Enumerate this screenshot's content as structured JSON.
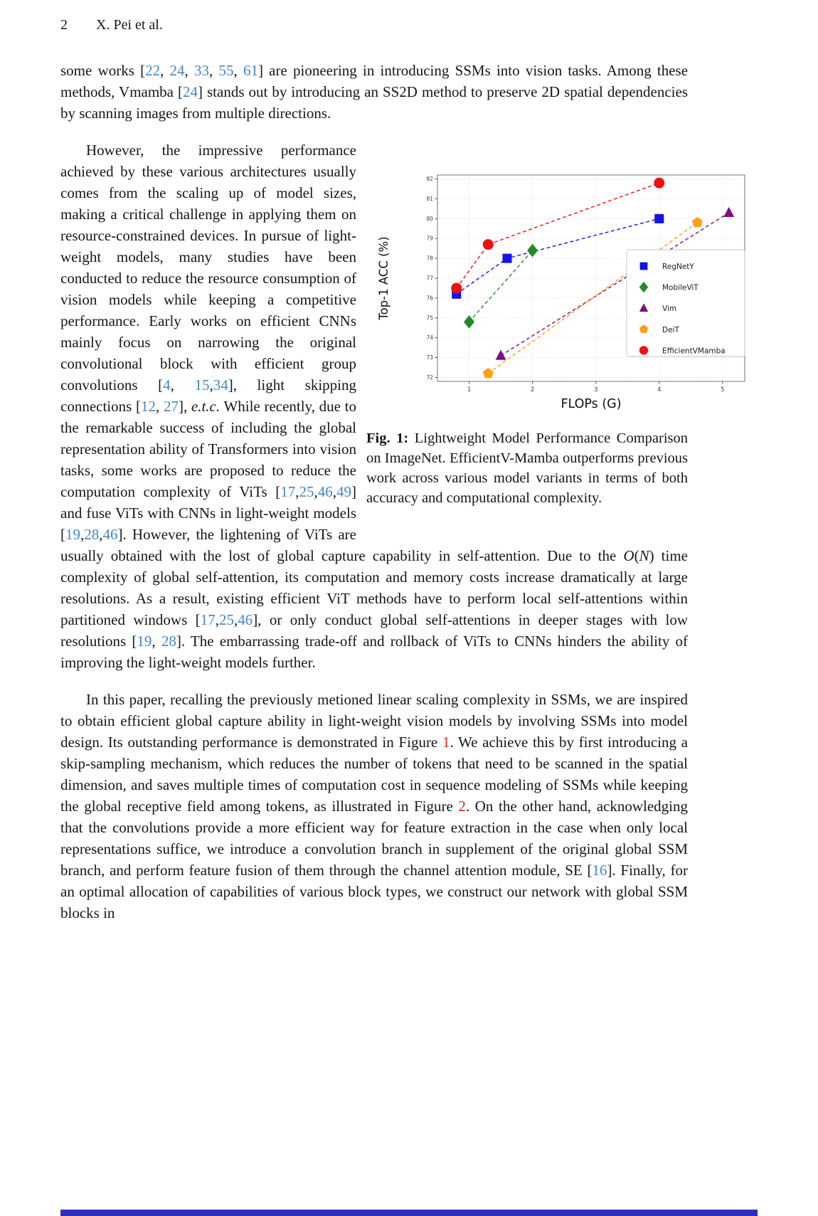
{
  "page": {
    "number": "2",
    "running_head": "X. Pei et al."
  },
  "colors": {
    "citation": "#4486c7",
    "figure_reference": "#d42a20",
    "body_text": "#161616",
    "bottom_bar": "#2e2ec4"
  },
  "figure": {
    "caption_label": "Fig. 1:",
    "caption_text": "Lightweight Model Performance Comparison on ImageNet. EfficientV-Mamba outperforms previous work across various model variants in terms of both accuracy and computational complexity."
  },
  "chart_data": {
    "type": "scatter",
    "title": "",
    "xlabel": "FLOPs (G)",
    "ylabel": "Top-1 ACC (%)",
    "xlim": [
      0.5,
      5.35
    ],
    "ylim": [
      71.8,
      82.2
    ],
    "xticks": [
      1,
      2,
      3,
      4,
      5
    ],
    "yticks": [
      72,
      73,
      74,
      75,
      76,
      77,
      78,
      79,
      80,
      81,
      82
    ],
    "grid": true,
    "legend_position": "center-right",
    "line_style": "dashed",
    "series": [
      {
        "name": "RegNetY",
        "marker": "square",
        "color": "#1414e6",
        "points": [
          [
            0.8,
            76.2
          ],
          [
            1.6,
            78.0
          ],
          [
            4.0,
            80.0
          ]
        ]
      },
      {
        "name": "MobileViT",
        "marker": "diamond",
        "color": "#228b22",
        "points": [
          [
            1.0,
            74.8
          ],
          [
            2.0,
            78.4
          ]
        ]
      },
      {
        "name": "Vim",
        "marker": "triangle",
        "color": "#7b1085",
        "points": [
          [
            1.5,
            73.1
          ],
          [
            5.1,
            80.3
          ]
        ]
      },
      {
        "name": "DeiT",
        "marker": "pentagon",
        "color": "#ffa012",
        "points": [
          [
            1.3,
            72.2
          ],
          [
            4.6,
            79.8
          ]
        ]
      },
      {
        "name": "EfficientVMamba",
        "marker": "circle",
        "color": "#ee1111",
        "points": [
          [
            0.8,
            76.5
          ],
          [
            1.3,
            78.7
          ],
          [
            4.0,
            81.8
          ]
        ]
      }
    ]
  },
  "paragraphs": [
    {
      "id": "intro",
      "indent": false,
      "spaced": false,
      "segments": [
        {
          "t": "some works ["
        },
        {
          "t": "22",
          "c": "cite"
        },
        {
          "t": ", "
        },
        {
          "t": "24",
          "c": "cite"
        },
        {
          "t": ", "
        },
        {
          "t": "33",
          "c": "cite"
        },
        {
          "t": ", "
        },
        {
          "t": "55",
          "c": "cite"
        },
        {
          "t": ", "
        },
        {
          "t": "61",
          "c": "cite"
        },
        {
          "t": "] are pioneering in introducing SSMs into vision tasks. Among these methods, Vmamba ["
        },
        {
          "t": "24",
          "c": "cite"
        },
        {
          "t": "] stands out by introducing an SS2D method to preserve 2D spatial dependencies by scanning images from multiple directions."
        }
      ]
    },
    {
      "id": "body",
      "indent": true,
      "spaced": true,
      "segments": [
        {
          "t": "However, the impressive performance achieved by these various architectures usually comes from the scaling up of model sizes, making a critical challenge in applying them on resource-constrained devices. In pursue of light-weight models, many studies have been conducted to reduce the resource consumption of vision models while keeping a competitive performance. Early works on efficient CNNs mainly focus on narrowing the original convolutional block with efficient group convolutions ["
        },
        {
          "t": "4",
          "c": "cite"
        },
        {
          "t": ", "
        },
        {
          "t": "15",
          "c": "cite"
        },
        {
          "t": ","
        },
        {
          "t": "34",
          "c": "cite"
        },
        {
          "t": "], light skipping connections ["
        },
        {
          "t": "12",
          "c": "cite"
        },
        {
          "t": ", "
        },
        {
          "t": "27",
          "c": "cite"
        },
        {
          "t": "], "
        },
        {
          "t": "e.t.c.",
          "c": "i"
        },
        {
          "t": " While recently, due to the remarkable success of including the global representation ability of Transformers into vision tasks, some works are proposed to reduce the computation complexity of ViTs ["
        },
        {
          "t": "17",
          "c": "cite"
        },
        {
          "t": ","
        },
        {
          "t": "25",
          "c": "cite"
        },
        {
          "t": ","
        },
        {
          "t": "46",
          "c": "cite"
        },
        {
          "t": ","
        },
        {
          "t": "49",
          "c": "cite"
        },
        {
          "t": "] and fuse ViTs with CNNs in light-weight models ["
        },
        {
          "t": "19",
          "c": "cite"
        },
        {
          "t": ","
        },
        {
          "t": "28",
          "c": "cite"
        },
        {
          "t": ","
        },
        {
          "t": "46",
          "c": "cite"
        },
        {
          "t": "]. However, the lightening of ViTs are usually obtained with the lost of global capture capability in self-attention. Due to the "
        },
        {
          "t": "O",
          "c": "math"
        },
        {
          "t": "("
        },
        {
          "t": "N",
          "c": "math"
        },
        {
          "t": ") time complexity of global self-attention, its computation and memory costs increase dramatically at large resolutions. As a result, existing efficient ViT methods have to perform local self-attentions within partitioned windows ["
        },
        {
          "t": "17",
          "c": "cite"
        },
        {
          "t": ","
        },
        {
          "t": "25",
          "c": "cite"
        },
        {
          "t": ","
        },
        {
          "t": "46",
          "c": "cite"
        },
        {
          "t": "], or only conduct global self-attentions in deeper stages with low resolutions ["
        },
        {
          "t": "19",
          "c": "cite"
        },
        {
          "t": ", "
        },
        {
          "t": "28",
          "c": "cite"
        },
        {
          "t": "]. The embarrassing trade-off and rollback of ViTs to CNNs hinders the ability of improving the light-weight models further."
        }
      ]
    },
    {
      "id": "method",
      "indent": true,
      "spaced": true,
      "segments": [
        {
          "t": "In this paper, recalling the previously metioned linear scaling complexity in SSMs, we are inspired to obtain efficient global capture ability in light-weight vision models by involving SSMs into model design. Its outstanding performance is demonstrated in Figure "
        },
        {
          "t": "1",
          "c": "figref"
        },
        {
          "t": ". We achieve this by first introducing a skip-sampling mechanism, which reduces the number of tokens that need to be scanned in the spatial dimension, and saves multiple times of computation cost in sequence modeling of SSMs while keeping the global receptive field among tokens, as illustrated in Figure "
        },
        {
          "t": "2",
          "c": "figref"
        },
        {
          "t": ". On the other hand, acknowledging that the convolutions provide a more efficient way for feature extraction in the case when only local representations suffice, we introduce a convolution branch in supplement of the original global SSM branch, and perform feature fusion of them through the channel attention module, SE ["
        },
        {
          "t": "16",
          "c": "cite"
        },
        {
          "t": "]. Finally, for an optimal allocation of capabilities of various block types, we construct our network with global SSM blocks in"
        }
      ]
    }
  ]
}
